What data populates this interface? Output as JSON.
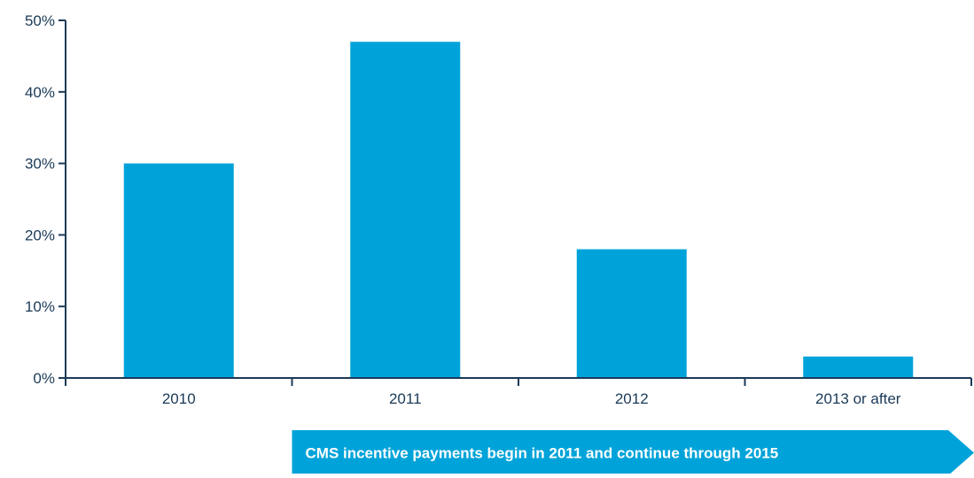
{
  "chart_data": {
    "type": "bar",
    "title": "",
    "xlabel": "",
    "ylabel": "",
    "categories": [
      "2010",
      "2011",
      "2012",
      "2013 or after"
    ],
    "values": [
      30,
      47,
      18,
      3
    ],
    "ylim": [
      0,
      50
    ],
    "yticks": [
      0,
      10,
      20,
      30,
      40,
      50
    ],
    "ytick_labels": [
      "0%",
      "10%",
      "20%",
      "30%",
      "40%",
      "50%"
    ],
    "grid": false,
    "legend": "none",
    "bar_color": "#00A3D9",
    "axis_color": "#1B3A57",
    "text_color": "#1B3A57",
    "annotation": {
      "text": "CMS incentive payments begin in 2011 and continue through 2015",
      "color": "#00A3D9",
      "text_color": "#ffffff",
      "spans_categories": [
        "2011",
        "2013 or after"
      ]
    }
  }
}
